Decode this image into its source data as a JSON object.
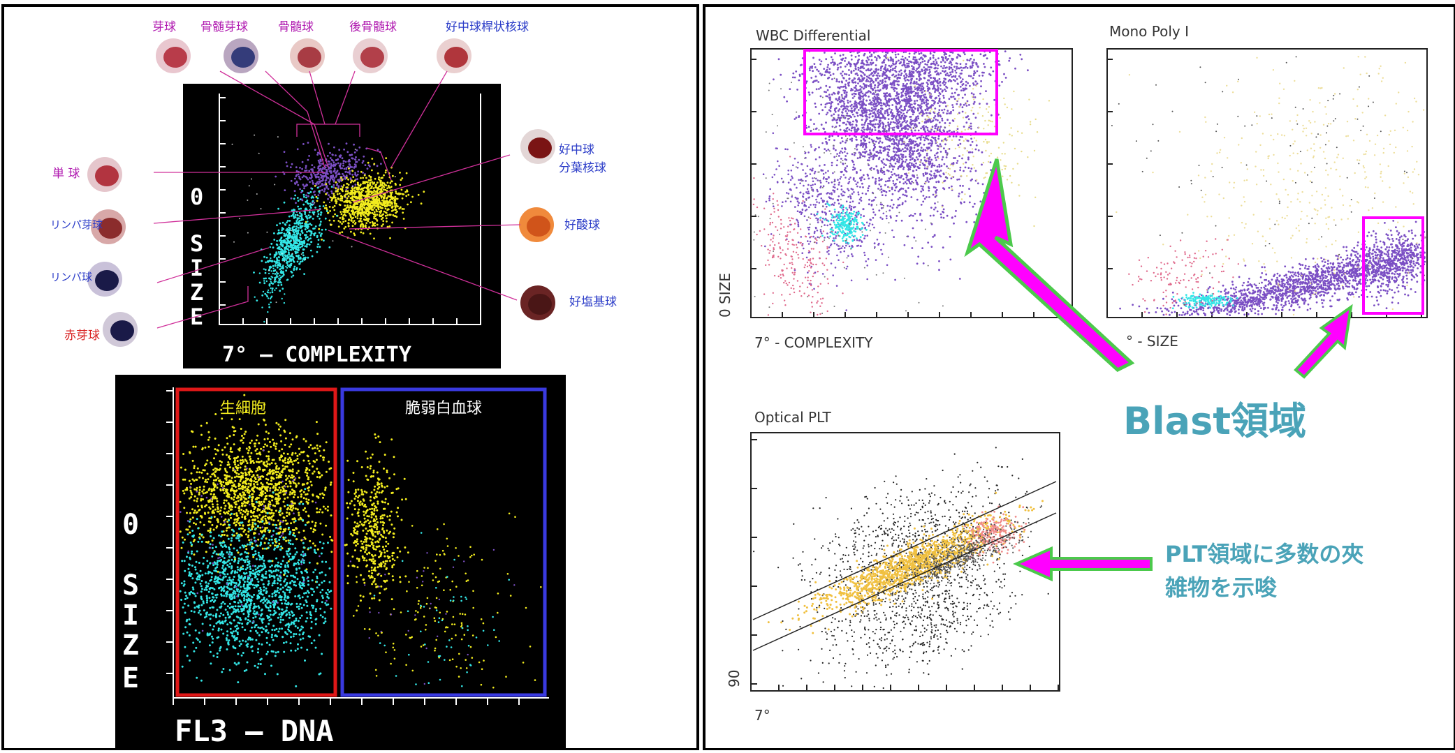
{
  "left_panel": {
    "cell_labels_top": [
      "芽球",
      "骨髄芽球",
      "骨髄球",
      "後骨髄球",
      "好中球桿状核球"
    ],
    "cell_labels_left": [
      "単 球",
      "リンパ芽球",
      "リンパ球",
      "赤芽球"
    ],
    "cell_labels_right": [
      "好中球",
      "分葉核球",
      "好酸球",
      "好塩基球"
    ],
    "plot1": {
      "y_axis_label": [
        "0",
        "S",
        "I",
        "Z",
        "E"
      ],
      "x_axis_label": "7° – COMPLEXITY"
    },
    "plot2": {
      "y_axis_label": [
        "0",
        "S",
        "I",
        "Z",
        "E"
      ],
      "x_axis_label": "FL3 – DNA",
      "gate_left_label": "生細胞",
      "gate_right_label": "脆弱白血球"
    }
  },
  "right_panel": {
    "wbc_title": "WBC Differential",
    "wbc_xlabel": "7° - COMPLEXITY",
    "wbc_ylabel": "0 SIZE",
    "mono_title": "Mono Poly I",
    "mono_xlabel": "° - SIZE",
    "plt_title": "Optical PLT",
    "plt_xlabel": "7°",
    "plt_ylabel": "90",
    "blast_label": "Blast領域",
    "plt_note_line1": "PLT領域に多数の夾",
    "plt_note_line2": "雑物を示唆"
  },
  "colors": {
    "yellow": "#f2ec1e",
    "cyan": "#33e6e6",
    "purple": "#7b4fc4",
    "magenta": "#ff00ff",
    "green": "#4cc94c",
    "teal_text": "#4aa3b8",
    "red_gate": "#e01818",
    "blue_gate": "#3a3ae0"
  },
  "chart_data": [
    {
      "type": "scatter",
      "title": "",
      "xlabel": "7° – COMPLEXITY",
      "ylabel": "0 SIZE",
      "series": [
        {
          "name": "",
          "color": "purple",
          "cluster_center": [
            0.42,
            0.62
          ]
        },
        {
          "name": "",
          "color": "yellow",
          "cluster_center": [
            0.58,
            0.5
          ]
        },
        {
          "name": "",
          "color": "cyan",
          "cluster_center": [
            0.35,
            0.3
          ]
        }
      ],
      "grid": false
    },
    {
      "type": "scatter",
      "title": "",
      "xlabel": "FL3 – DNA",
      "ylabel": "0 SIZE",
      "annotations": [
        "生細胞",
        "脆弱白血球"
      ],
      "series": [
        {
          "name": "",
          "color": "yellow",
          "cluster_center": [
            0.25,
            0.72
          ]
        },
        {
          "name": "",
          "color": "cyan",
          "cluster_center": [
            0.22,
            0.35
          ]
        },
        {
          "name": "",
          "color": "yellow",
          "cluster_center": [
            0.55,
            0.55
          ]
        }
      ],
      "grid": false
    },
    {
      "type": "scatter",
      "title": "WBC Differential",
      "xlabel": "7° - COMPLEXITY",
      "ylabel": "0 SIZE",
      "series": [
        {
          "name": "",
          "color": "purple",
          "cluster_center": [
            0.48,
            0.72
          ]
        },
        {
          "name": "",
          "color": "cyan",
          "cluster_center": [
            0.22,
            0.35
          ]
        }
      ],
      "grid": false
    },
    {
      "type": "scatter",
      "title": "Mono Poly I",
      "xlabel": "° - SIZE",
      "ylabel": "",
      "series": [
        {
          "name": "",
          "color": "purple",
          "cluster_center": [
            0.7,
            0.15
          ]
        }
      ],
      "grid": false
    },
    {
      "type": "scatter",
      "title": "Optical PLT",
      "xlabel": "7°",
      "ylabel": "90",
      "series": [
        {
          "name": "",
          "color": "yellow",
          "cluster_center": [
            0.45,
            0.5
          ]
        },
        {
          "name": "",
          "color": "black",
          "cluster_center": [
            0.55,
            0.45
          ]
        }
      ],
      "grid": false
    }
  ]
}
